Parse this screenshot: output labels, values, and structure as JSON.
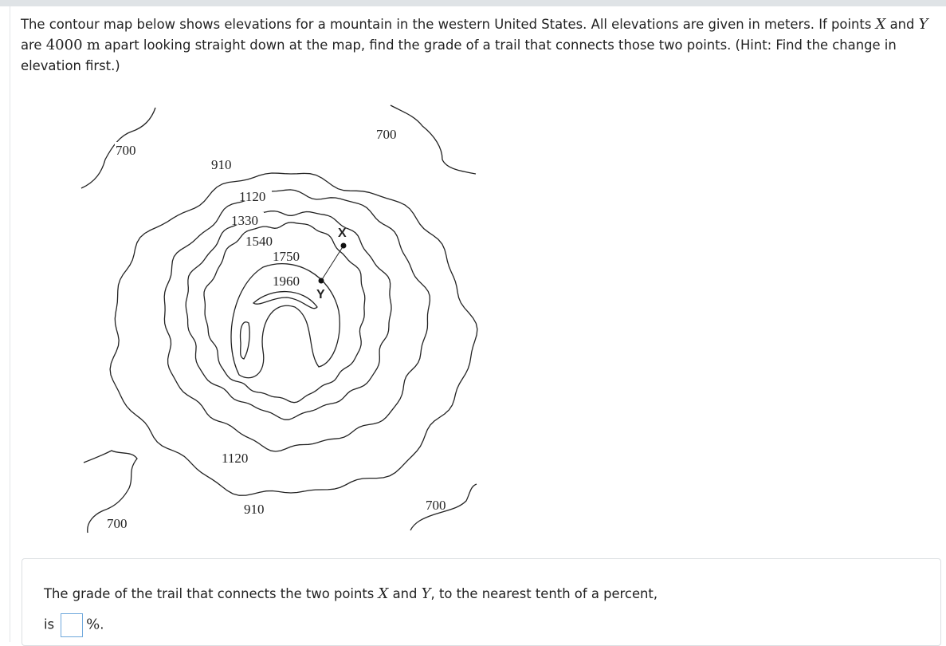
{
  "question": {
    "parts": [
      "The contour map below shows elevations for a mountain in the western United States. All elevations are given in meters. If points ",
      "X",
      " and ",
      "Y",
      " are ",
      "4000",
      " ",
      "m",
      " apart looking straight down at the map, find the grade of a trail that connects those two points. (Hint: Find the change in elevation first.)"
    ]
  },
  "map": {
    "labels": [
      "700",
      "910",
      "1120",
      "1330",
      "1540",
      "1750",
      "1960",
      "700",
      "1120",
      "910",
      "700",
      "700"
    ],
    "points": [
      "X",
      "Y"
    ]
  },
  "answer": {
    "parts": [
      "The grade of the trail that connects the two points ",
      "X",
      " and ",
      "Y",
      ", to the nearest tenth of a percent,",
      "is",
      "%",
      "."
    ]
  }
}
